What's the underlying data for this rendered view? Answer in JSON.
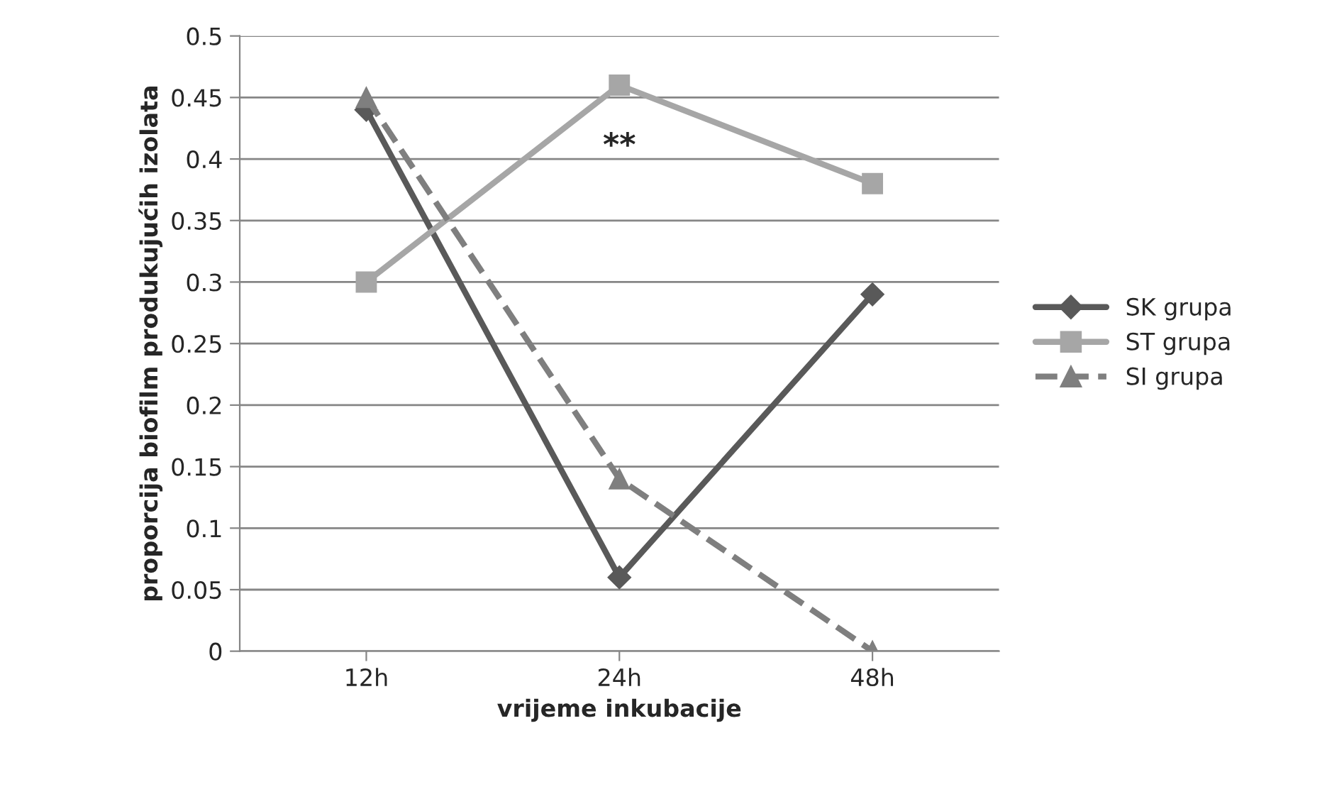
{
  "chart_data": {
    "type": "line",
    "xlabel": "vrijeme inkubacije",
    "ylabel": "proporcija biofilm produkujućih izolata",
    "categories": [
      "12h",
      "24h",
      "48h"
    ],
    "series": [
      {
        "name": "SK grupa",
        "color": "#595959",
        "values": [
          0.44,
          0.06,
          0.29
        ],
        "marker": "diamond",
        "line_style": "solid"
      },
      {
        "name": "ST grupa",
        "color": "#a6a6a6",
        "values": [
          0.3,
          0.46,
          0.38
        ],
        "marker": "square",
        "line_style": "solid"
      },
      {
        "name": "SI grupa",
        "color": "#7f7f7f",
        "values": [
          0.45,
          0.14,
          0
        ],
        "marker": "triangle",
        "line_style": "dashed"
      }
    ],
    "annotations": [
      "**"
    ],
    "ylim": [
      0,
      0.5
    ],
    "yticks": [
      0,
      0.05,
      0.1,
      0.15,
      0.2,
      0.25,
      0.3,
      0.35,
      0.4,
      0.45,
      0.5
    ],
    "grid": "y",
    "legend": "right"
  }
}
